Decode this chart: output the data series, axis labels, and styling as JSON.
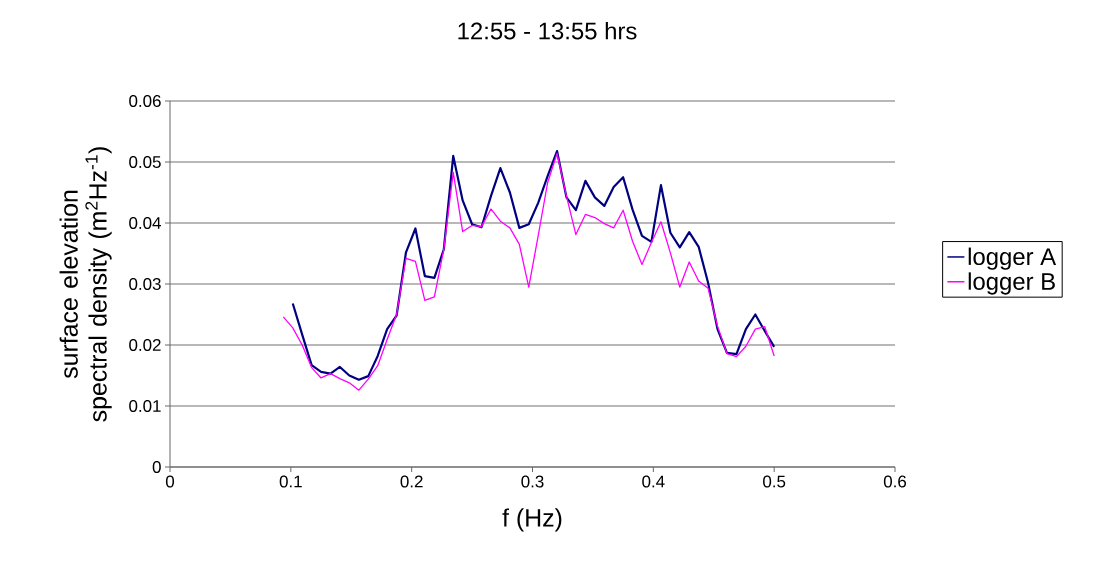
{
  "chart_data": {
    "type": "line",
    "title": "12:55 - 13:55 hrs",
    "xlabel": "f (Hz)",
    "ylabel": "surface elevation spectral density (m$^{2}$Hz$^{-1}$)",
    "xlim": [
      0,
      0.6
    ],
    "ylim": [
      0,
      0.06
    ],
    "xticks": [
      0,
      0.1,
      0.2,
      0.3,
      0.4,
      0.5,
      0.6
    ],
    "yticks": [
      0,
      0.01,
      0.02,
      0.03,
      0.04,
      0.05,
      0.06
    ],
    "grid": "y",
    "legend": "right",
    "marker": "none",
    "line_style": "solid",
    "series": [
      {
        "name": "logger A",
        "color": "#000080",
        "x": [
          0.1016,
          0.1094,
          0.1172,
          0.125,
          0.1328,
          0.1406,
          0.1484,
          0.1563,
          0.1641,
          0.1719,
          0.1797,
          0.1875,
          0.1953,
          0.2031,
          0.2109,
          0.2188,
          0.2266,
          0.2344,
          0.2422,
          0.25,
          0.2578,
          0.2656,
          0.2734,
          0.2813,
          0.2891,
          0.2969,
          0.3047,
          0.3125,
          0.3203,
          0.3281,
          0.3359,
          0.3438,
          0.3516,
          0.3594,
          0.3672,
          0.375,
          0.3828,
          0.3906,
          0.3984,
          0.4063,
          0.4141,
          0.4219,
          0.4297,
          0.4375,
          0.4453,
          0.4531,
          0.4609,
          0.4688,
          0.4766,
          0.4844,
          0.4922,
          0.5
        ],
        "values": [
          0.0268,
          0.0217,
          0.0167,
          0.0156,
          0.0153,
          0.0164,
          0.015,
          0.0143,
          0.0149,
          0.0182,
          0.0226,
          0.0248,
          0.0352,
          0.0391,
          0.0313,
          0.031,
          0.0357,
          0.051,
          0.0437,
          0.0398,
          0.0393,
          0.0444,
          0.049,
          0.045,
          0.0392,
          0.0398,
          0.0433,
          0.0477,
          0.0518,
          0.0442,
          0.0421,
          0.0469,
          0.0442,
          0.0428,
          0.0459,
          0.0475,
          0.0422,
          0.0379,
          0.0369,
          0.0462,
          0.0384,
          0.036,
          0.0385,
          0.0361,
          0.0302,
          0.0226,
          0.0187,
          0.0185,
          0.0226,
          0.025,
          0.0223,
          0.0197
        ]
      },
      {
        "name": "logger B",
        "color": "#ff00ff",
        "x": [
          0.0938,
          0.1016,
          0.1094,
          0.1172,
          0.125,
          0.1328,
          0.1406,
          0.1484,
          0.1563,
          0.1641,
          0.1719,
          0.1797,
          0.1875,
          0.1953,
          0.2031,
          0.2109,
          0.2188,
          0.2266,
          0.2344,
          0.2422,
          0.25,
          0.2578,
          0.2656,
          0.2734,
          0.2813,
          0.2891,
          0.2969,
          0.3047,
          0.3125,
          0.3203,
          0.3281,
          0.3359,
          0.3438,
          0.3516,
          0.3594,
          0.3672,
          0.375,
          0.3828,
          0.3906,
          0.3984,
          0.4063,
          0.4141,
          0.4219,
          0.4297,
          0.4375,
          0.4453,
          0.4531,
          0.4609,
          0.4688,
          0.4766,
          0.4844,
          0.4922,
          0.5
        ],
        "values": [
          0.0246,
          0.0228,
          0.02,
          0.0163,
          0.0146,
          0.0153,
          0.0145,
          0.0138,
          0.0126,
          0.0144,
          0.0166,
          0.0209,
          0.025,
          0.0342,
          0.0337,
          0.0273,
          0.0279,
          0.0357,
          0.0483,
          0.0386,
          0.0396,
          0.0394,
          0.0423,
          0.0403,
          0.0392,
          0.0365,
          0.0295,
          0.0379,
          0.0466,
          0.0514,
          0.0444,
          0.0381,
          0.0414,
          0.0409,
          0.0399,
          0.0392,
          0.0421,
          0.037,
          0.0332,
          0.0368,
          0.0402,
          0.0351,
          0.0295,
          0.0336,
          0.0305,
          0.0293,
          0.0231,
          0.0186,
          0.0181,
          0.0198,
          0.0226,
          0.023,
          0.0182
        ]
      }
    ]
  }
}
